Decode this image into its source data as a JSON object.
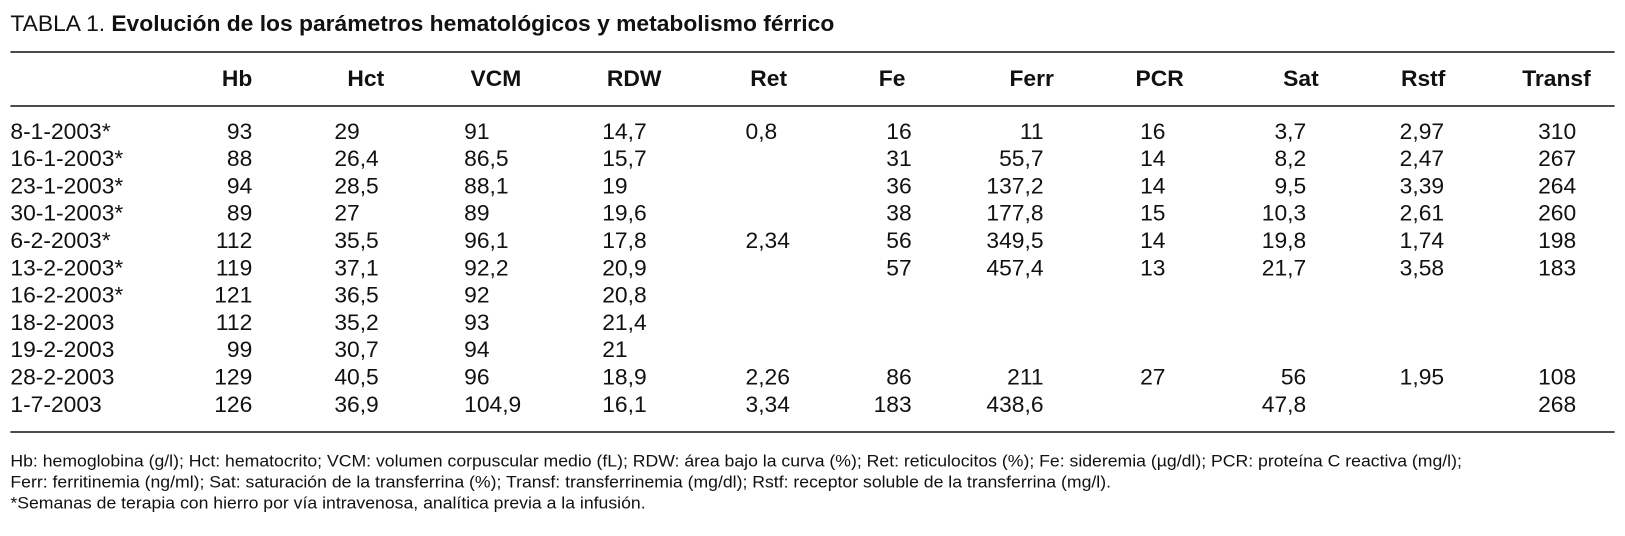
{
  "title": {
    "label": "TABLA 1.",
    "text": "Evolución de los parámetros hematológicos y metabolismo férrico"
  },
  "table": {
    "header": [
      "Hb",
      "Hct",
      "VCM",
      "RDW",
      "Ret",
      "Fe",
      "Ferr",
      "PCR",
      "Sat",
      "Rstf",
      "Transf"
    ],
    "rows": [
      [
        "8-1-2003*",
        "93",
        "29",
        "91",
        "14,7",
        "0,8",
        "16",
        "11",
        "16",
        "3,7",
        "2,97",
        "310"
      ],
      [
        "16-1-2003*",
        "88",
        "26,4",
        "86,5",
        "15,7",
        null,
        "31",
        "55,7",
        "14",
        "8,2",
        "2,47",
        "267"
      ],
      [
        "23-1-2003*",
        "94",
        "28,5",
        "88,1",
        "19",
        null,
        "36",
        "137,2",
        "14",
        "9,5",
        "3,39",
        "264"
      ],
      [
        "30-1-2003*",
        "89",
        "27",
        "89",
        "19,6",
        null,
        "38",
        "177,8",
        "15",
        "10,3",
        "2,61",
        "260"
      ],
      [
        "6-2-2003*",
        "112",
        "35,5",
        "96,1",
        "17,8",
        "2,34",
        "56",
        "349,5",
        "14",
        "19,8",
        "1,74",
        "198"
      ],
      [
        "13-2-2003*",
        "119",
        "37,1",
        "92,2",
        "20,9",
        null,
        "57",
        "457,4",
        "13",
        "21,7",
        "3,58",
        "183"
      ],
      [
        "16-2-2003*",
        "121",
        "36,5",
        "92",
        "20,8",
        null,
        null,
        null,
        null,
        null,
        null,
        null
      ],
      [
        "18-2-2003",
        "112",
        "35,2",
        "93",
        "21,4",
        null,
        null,
        null,
        null,
        null,
        null,
        null
      ],
      [
        "19-2-2003",
        "99",
        "30,7",
        "94",
        "21",
        null,
        null,
        null,
        null,
        null,
        null,
        null
      ],
      [
        "28-2-2003",
        "129",
        "40,5",
        "96",
        "18,9",
        "2,26",
        "86",
        "211",
        "27",
        "56",
        "1,95",
        "108"
      ],
      [
        "1-7-2003",
        "126",
        "36,9",
        "104,9",
        "16,1",
        "3,34",
        "183",
        "438,6",
        null,
        "47,8",
        null,
        "268"
      ]
    ]
  },
  "notes": [
    "Hb: hemoglobina (g/l); Hct: hematocrito; VCM: volumen corpuscular medio (fL); RDW: área bajo la curva (%); Ret: reticulocitos (%); Fe: sideremia (µg/dl); PCR: proteína C reactiva (mg/l);",
    "Ferr: ferritinemia (ng/ml); Sat: saturación de la transferrina (%); Transf: transferrinemia (mg/dl); Rstf: receptor soluble de la transferrina (mg/l).",
    "*Semanas de terapia con hierro por vía intravenosa, analítica previa a la infusión."
  ]
}
